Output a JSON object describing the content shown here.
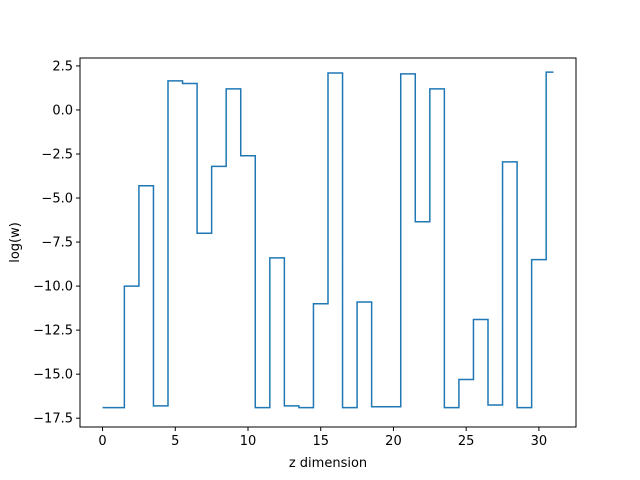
{
  "chart_data": {
    "type": "line",
    "drawstyle": "steps-mid",
    "title": "",
    "xlabel": "z dimension",
    "ylabel": "log(w)",
    "xlim": [
      -1.55,
      32.55
    ],
    "ylim": [
      -18.0,
      2.95
    ],
    "xticks": [
      0,
      5,
      10,
      15,
      20,
      25,
      30
    ],
    "yticks": [
      2.5,
      0.0,
      -2.5,
      -5.0,
      -7.5,
      -10.0,
      -12.5,
      -15.0,
      -17.5
    ],
    "ytick_labels": [
      "2.5",
      "0.0",
      "−2.5",
      "−5.0",
      "−7.5",
      "−10.0",
      "−12.5",
      "−15.0",
      "−17.5"
    ],
    "grid": false,
    "series": [
      {
        "color": "#1f77b4",
        "x": [
          0,
          1,
          2,
          3,
          4,
          5,
          6,
          7,
          8,
          9,
          10,
          11,
          12,
          13,
          14,
          15,
          16,
          17,
          18,
          19,
          20,
          21,
          22,
          23,
          24,
          25,
          26,
          27,
          28,
          29,
          30,
          31
        ],
        "y": [
          -16.9,
          -16.9,
          -10.0,
          -4.3,
          -16.8,
          1.65,
          1.5,
          -7.0,
          -3.2,
          1.2,
          -2.6,
          -16.9,
          -8.4,
          -16.8,
          -16.9,
          -11.0,
          2.1,
          -16.9,
          -10.9,
          -16.85,
          -16.85,
          2.05,
          -6.35,
          1.2,
          -16.9,
          -15.3,
          -11.9,
          -16.75,
          -2.95,
          -16.9,
          -8.5,
          2.15
        ]
      }
    ]
  }
}
